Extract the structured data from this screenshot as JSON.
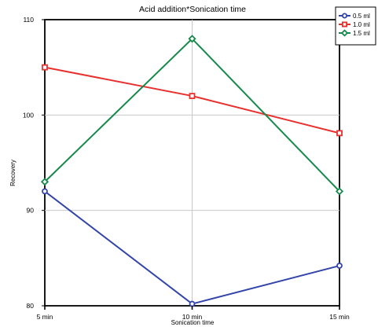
{
  "chart_data": {
    "type": "line",
    "title": "Acid addition*Sonication time",
    "xlabel": "Sonication time",
    "ylabel": "Recovery",
    "categories": [
      "5 min",
      "10 min",
      "15 min"
    ],
    "ylim": [
      80,
      110
    ],
    "yticks": [
      80,
      90,
      100,
      110
    ],
    "grid": true,
    "legend_position": "top-right",
    "series": [
      {
        "name": "0.5 ml",
        "color": "#3344aa",
        "marker": "circle",
        "values": [
          92,
          80.2,
          84.2
        ]
      },
      {
        "name": "1.0 ml",
        "color": "#e8302e",
        "marker": "square",
        "values": [
          105,
          102,
          98.1
        ]
      },
      {
        "name": "1.5 ml",
        "color": "#168a4a",
        "marker": "diamond",
        "values": [
          93,
          108,
          92
        ]
      }
    ]
  }
}
